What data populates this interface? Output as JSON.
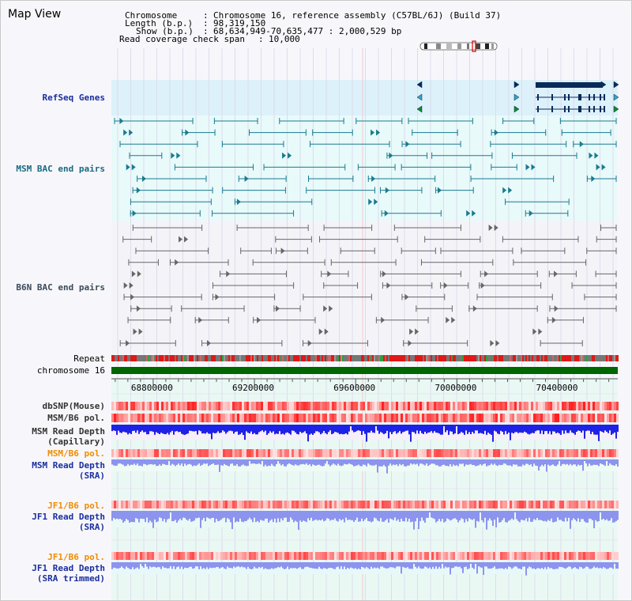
{
  "view_title": "Map View",
  "info": {
    "chromosome_key": "Chromosome",
    "chromosome_value": "Chromosome 16, reference assembly (C57BL/6J) (Build 37)",
    "length_key": "Length (b.p.)",
    "length_value": "98,319,150",
    "show_key": "Show (b.p.)",
    "show_value": "68,634,949-70,635,477 : 2,000,529 bp",
    "coverage_key": "Read coverage check span",
    "coverage_value": "10,000"
  },
  "tracks": {
    "refseq": "RefSeq Genes",
    "msm_bac": "MSM BAC end pairs",
    "b6n_bac": "B6N BAC end pairs",
    "repeat": "Repeat",
    "chromosome": "chromosome 16",
    "dbsnp": "dbSNP(Mouse)",
    "msm_pol_1": "MSM/B6 pol.",
    "msm_depth_cap_1": "MSM Read Depth",
    "msm_depth_cap_2": "(Capillary)",
    "msm_pol_2": "MSM/B6 pol.",
    "msm_depth_sra_1": "MSM Read Depth",
    "msm_depth_sra_2": "(SRA)",
    "jf1_pol_1": "JF1/B6 pol.",
    "jf1_depth_sra_1": "JF1 Read Depth",
    "jf1_depth_sra_2": "(SRA)",
    "jf1_pol_2": "JF1/B6 pol.",
    "jf1_depth_trim_1": "JF1 Read Depth",
    "jf1_depth_trim_2": "(SRA trimmed)"
  },
  "axis": {
    "ticks": [
      {
        "label": "68800000",
        "value": 68800000
      },
      {
        "label": "69200000",
        "value": 69200000
      },
      {
        "label": "69600000",
        "value": 69600000
      },
      {
        "label": "70000000",
        "value": 70000000
      },
      {
        "label": "70400000",
        "value": 70400000
      }
    ],
    "range_start": 68634949,
    "range_end": 70635477
  },
  "colors": {
    "refseq_bg": "#ddf1fa",
    "bac_bg": "#e8fafa",
    "chromosome": "#006600",
    "depth_capillary": "#1e22e6",
    "depth_sra": "#8c94ee",
    "refseq_gene": "#0a2a5a",
    "msm_pair": "#1a7a90",
    "b6n_pair": "#666666"
  }
}
